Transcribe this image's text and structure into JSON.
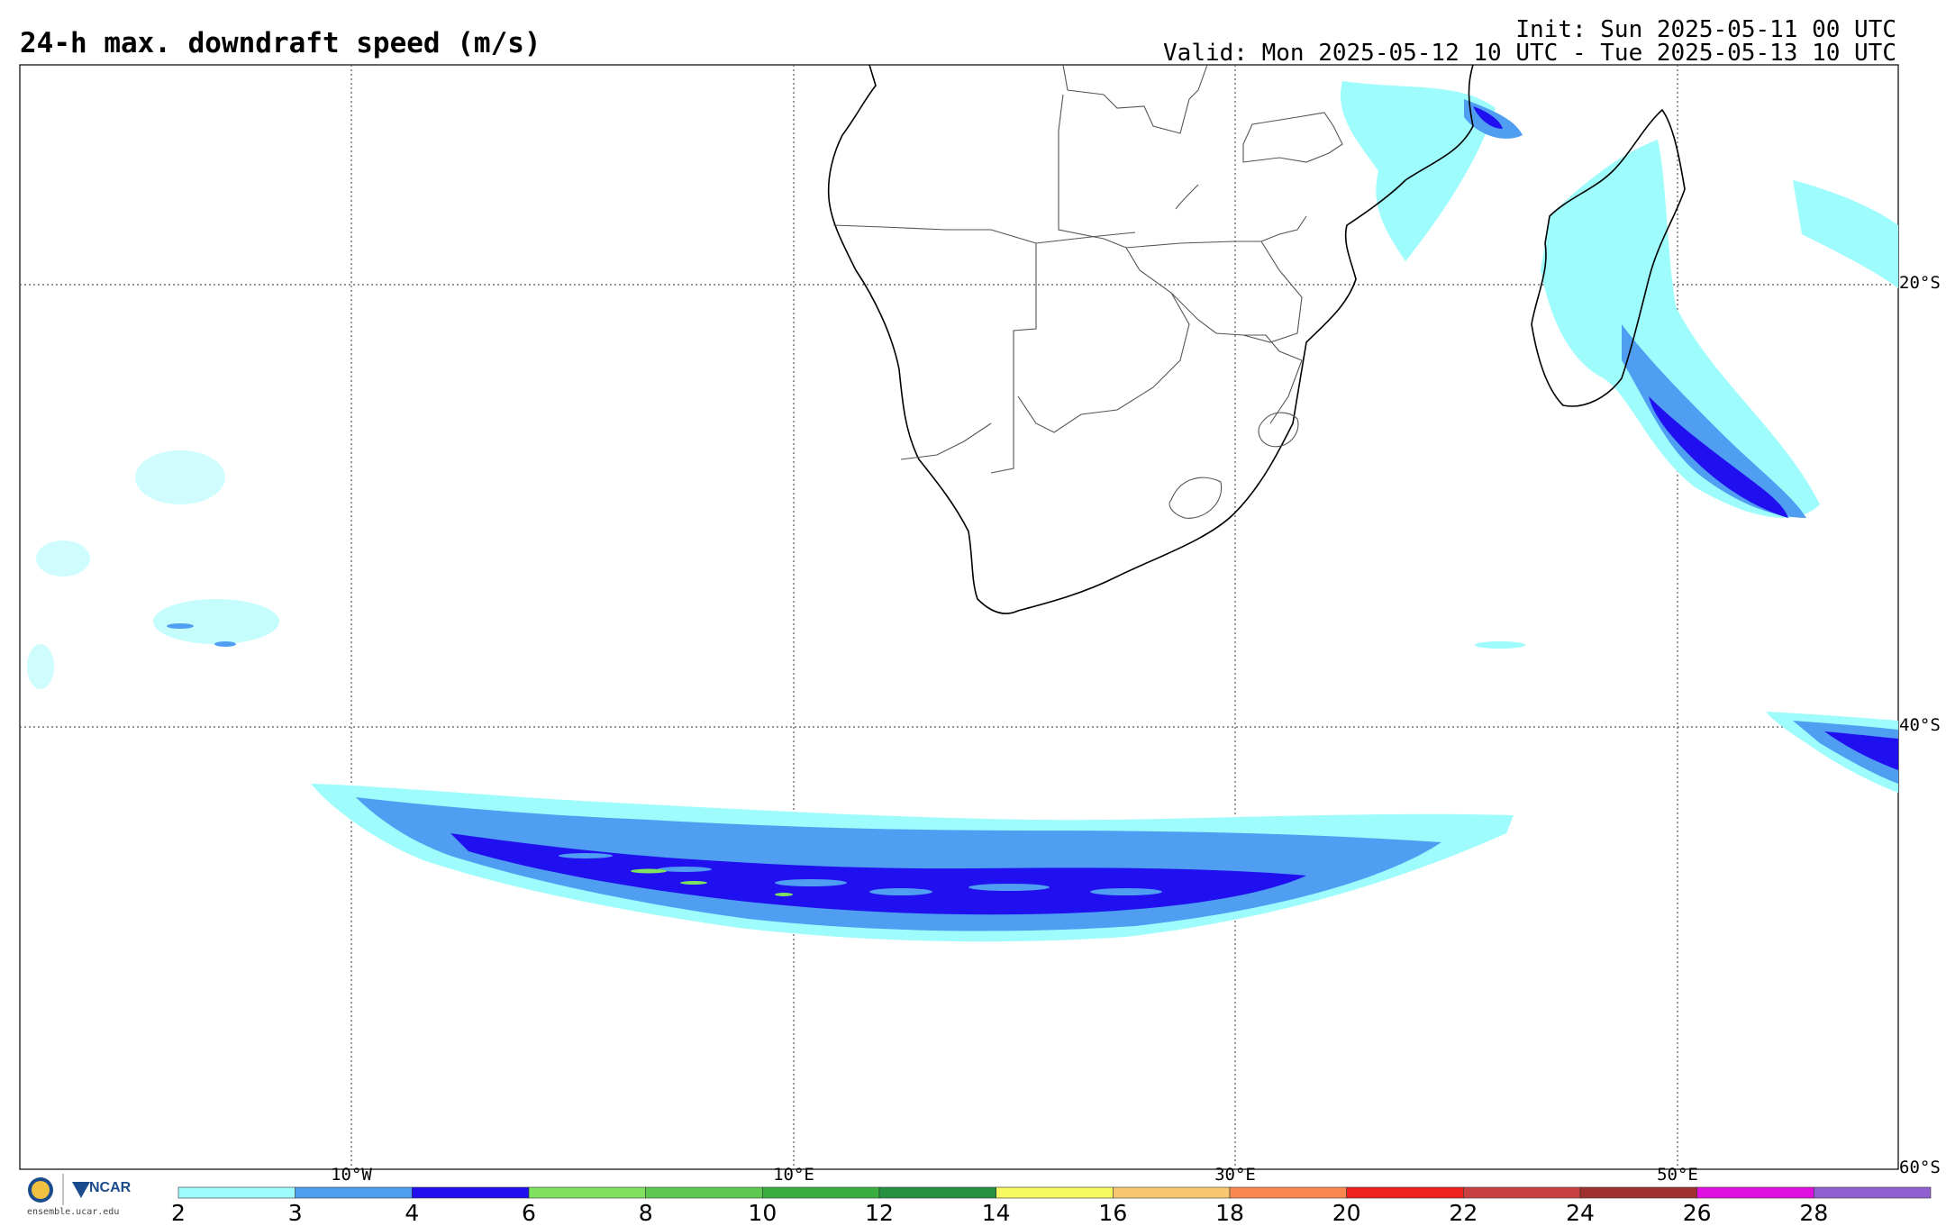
{
  "title": "24-h max. downdraft speed (m/s)",
  "init": "Init: Sun 2025-05-11 00 UTC",
  "valid": "Valid: Mon 2025-05-12 10 UTC - Tue 2025-05-13 10 UTC",
  "lat_labels": [
    "20°S",
    "40°S",
    "60°S"
  ],
  "lon_labels": [
    "10°W",
    "10°E",
    "30°E",
    "50°E"
  ],
  "colorbar": {
    "levels": [
      2,
      3,
      4,
      6,
      8,
      10,
      12,
      14,
      16,
      18,
      20,
      22,
      24,
      26,
      28
    ],
    "colors": [
      "#9ffcfc",
      "#4f9ef2",
      "#2010f0",
      "#80e060",
      "#5cc850",
      "#3aae40",
      "#249040",
      "#f8f860",
      "#f8c870",
      "#f88850",
      "#f02020",
      "#c84040",
      "#a03030",
      "#e010e0",
      "#9060d0"
    ]
  },
  "logo": {
    "org": "NCAR",
    "url": "ensemble.ucar.edu"
  }
}
